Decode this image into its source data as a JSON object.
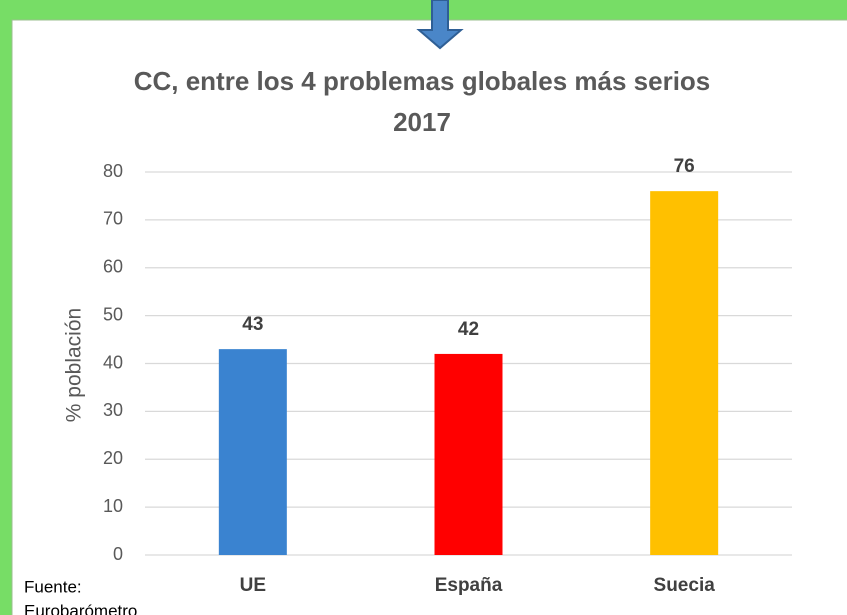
{
  "chart_data": {
    "type": "bar",
    "title": "CC, entre los 4 problemas globales más serios",
    "subtitle": "2017",
    "y_label": "% población",
    "categories": [
      "UE",
      "España",
      "Suecia"
    ],
    "values": [
      43,
      42,
      76
    ],
    "colors": [
      "#3a83d0",
      "#ff0000",
      "#ffc000"
    ],
    "ylim": [
      0,
      80
    ],
    "yticks": [
      0,
      10,
      20,
      30,
      40,
      50,
      60,
      70,
      80
    ],
    "grid": true,
    "source": [
      "Fuente:",
      "Eurobarómetro"
    ]
  }
}
